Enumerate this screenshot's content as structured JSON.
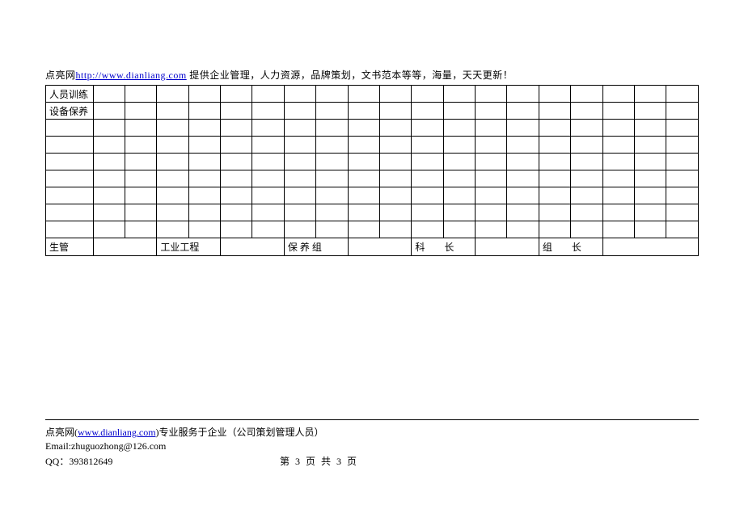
{
  "header": {
    "prefix": "点亮网",
    "link_text": "http://www.dianliang.com",
    "link_href": "http://www.dianliang.com",
    "suffix": " 提供企业管理，人力资源，品牌策划，文书范本等等，海量，天天更新！"
  },
  "table": {
    "rows": [
      {
        "label": "人员训练"
      },
      {
        "label": "设备保养"
      },
      {
        "label": ""
      },
      {
        "label": ""
      },
      {
        "label": ""
      },
      {
        "label": ""
      },
      {
        "label": ""
      },
      {
        "label": ""
      },
      {
        "label": ""
      }
    ],
    "footer_row": {
      "c1": "生管",
      "c2": "",
      "c3": "工业工程",
      "c4": "",
      "c5": "保 养 组",
      "c6": "",
      "c7": "科　　长",
      "c8": "",
      "c9": "组　　长",
      "c10": ""
    }
  },
  "footer": {
    "line1_prefix": "点亮网(",
    "line1_link_text": "www.dianliang.com",
    "line1_link_href": "http://www.dianliang.com",
    "line1_suffix": ")专业服务于企业（公司策划管理人员）",
    "email_label": "Email:",
    "email": "zhuguozhong@126.com",
    "qq_label": "QQ：",
    "qq": "393812649",
    "page_num": "第 3 页 共 3 页"
  }
}
